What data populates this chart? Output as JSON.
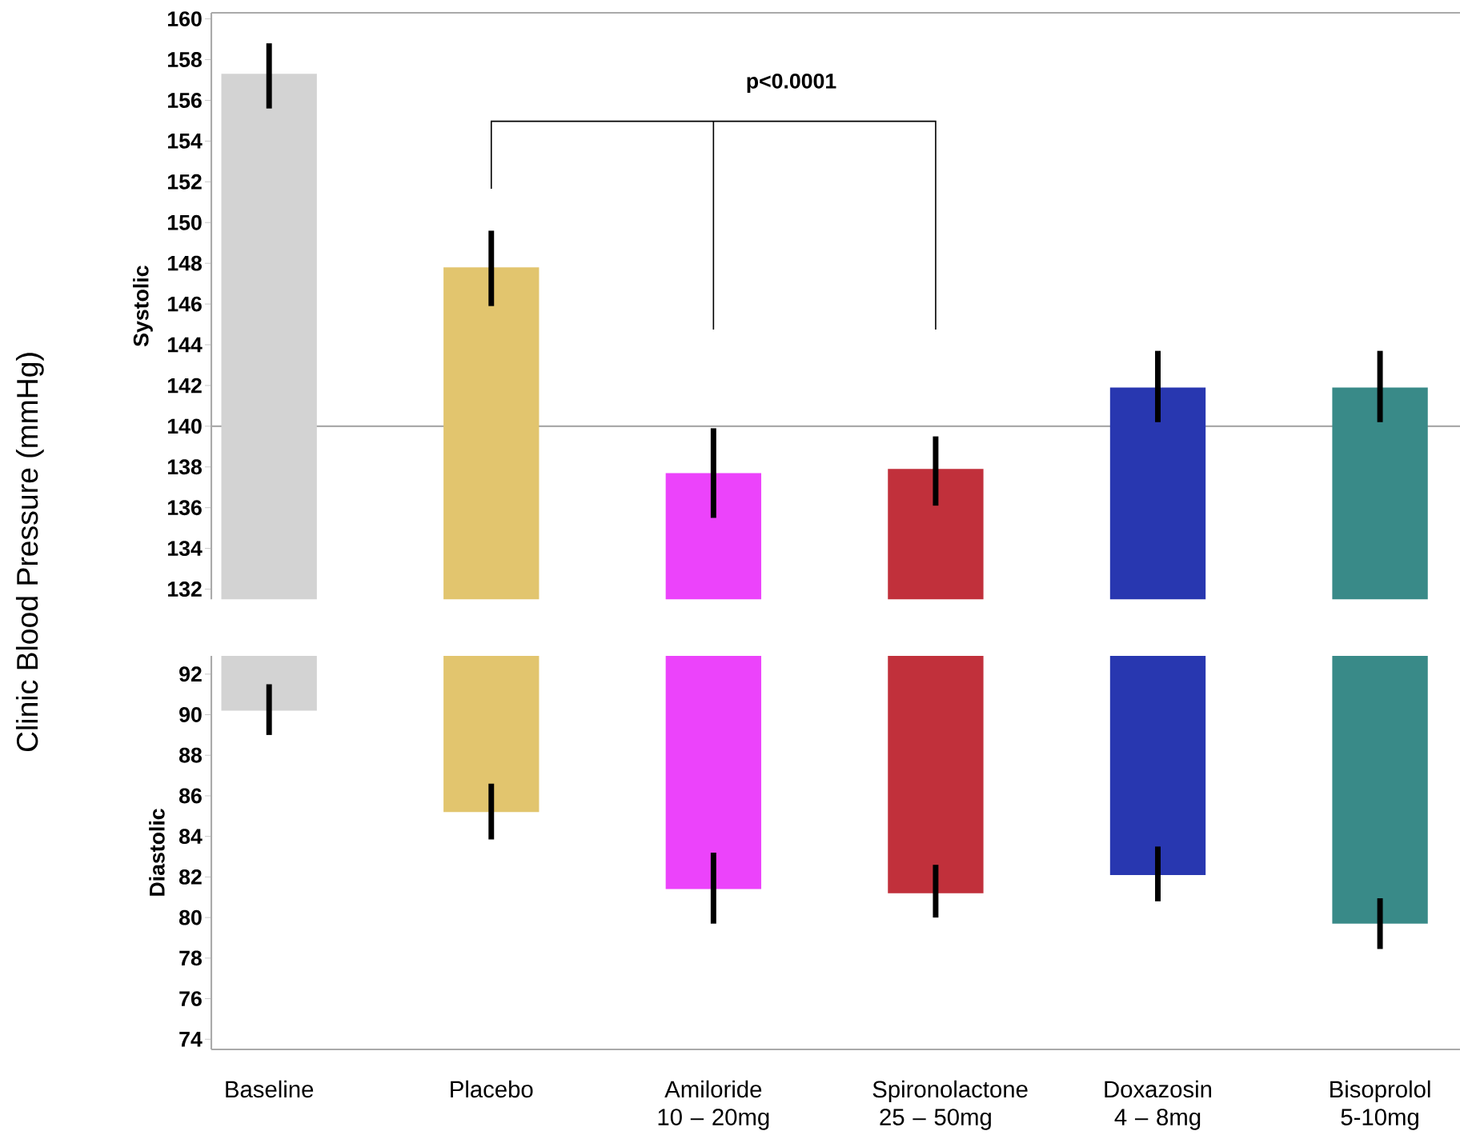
{
  "chart_data": [
    {
      "type": "bar",
      "ylabel": "Systolic",
      "tick_labels": "y",
      "categories": [
        null,
        null,
        null,
        null,
        null,
        null
      ],
      "values": [
        157.3,
        147.8,
        137.7,
        137.9,
        141.9,
        141.9
      ],
      "errors": [
        [
          155.6,
          158.8
        ],
        [
          145.9,
          149.6
        ],
        [
          135.5,
          139.9
        ],
        [
          136.1,
          139.5
        ],
        [
          140.2,
          143.7
        ],
        [
          140.2,
          143.7
        ]
      ],
      "colors": [
        "#d3d3d3",
        "#e2c56e",
        "#ec43fb",
        "#c1303b",
        "#2837b0",
        "#398a88"
      ],
      "ylim": [
        131.5,
        160.3
      ],
      "yticks": [
        132,
        134,
        136,
        138,
        140,
        142,
        144,
        146,
        148,
        150,
        152,
        154,
        156,
        158,
        160
      ],
      "ref_lines": [
        {
          "axis": "y",
          "value": 140,
          "color": "#aaaaaa"
        }
      ],
      "annotations": [
        "p<0.0001",
        "Clinic Blood Pressure (mmHg)"
      ]
    },
    {
      "type": "bar",
      "ylabel": "Diastolic",
      "categories": [
        "Baseline",
        "Placebo",
        "Amiloride 10 – 20mg",
        "Spironolactone 25 – 50mg",
        "Doxazosin 4 – 8mg",
        "Bisoprolol 5-10mg"
      ],
      "base": [
        92.9,
        92.9,
        92.9,
        92.9,
        92.9,
        92.9
      ],
      "values": [
        -2.7,
        -7.7,
        -11.5,
        -11.7,
        -10.8,
        -13.2
      ],
      "errors": [
        [
          89.0,
          91.5
        ],
        [
          83.85,
          86.6
        ],
        [
          79.7,
          83.2
        ],
        [
          80.0,
          82.6
        ],
        [
          80.8,
          83.5
        ],
        [
          78.45,
          80.95
        ]
      ],
      "colors": [
        "#d3d3d3",
        "#e2c56e",
        "#ec43fb",
        "#c1303b",
        "#2837b0",
        "#398a88"
      ],
      "ylim": [
        73.5,
        92.9
      ],
      "yticks": [
        74,
        76,
        78,
        80,
        82,
        84,
        86,
        88,
        90,
        92
      ]
    }
  ]
}
